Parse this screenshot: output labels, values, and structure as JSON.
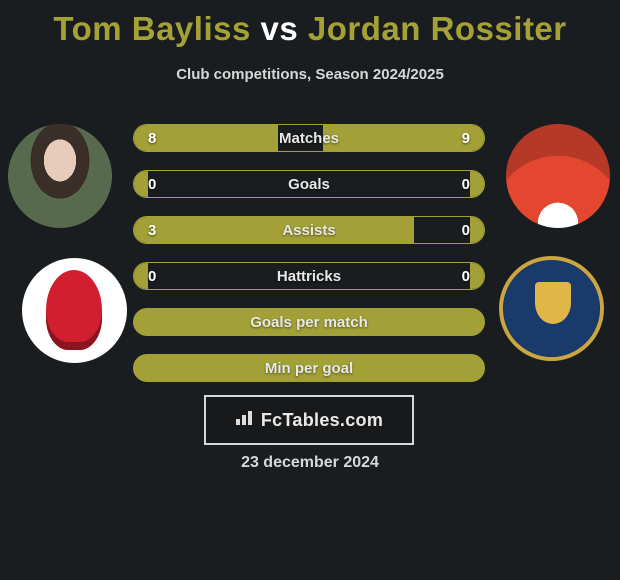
{
  "title": {
    "player1": "Tom Bayliss",
    "vs": "vs",
    "player2": "Jordan Rossiter"
  },
  "subtitle": "Club competitions, Season 2024/2025",
  "colors": {
    "accent": "#a2a037",
    "title_accent": "#a4a237",
    "background": "#1a1d1f",
    "text": "#e8e8e8",
    "border": "#d7d7d7"
  },
  "stats": [
    {
      "label": "Matches",
      "left_val": "8",
      "right_val": "9",
      "left_pct": 41,
      "right_pct": 46
    },
    {
      "label": "Goals",
      "left_val": "0",
      "right_val": "0",
      "left_pct": 4,
      "right_pct": 4
    },
    {
      "label": "Assists",
      "left_val": "3",
      "right_val": "0",
      "left_pct": 80,
      "right_pct": 4
    },
    {
      "label": "Hattricks",
      "left_val": "0",
      "right_val": "0",
      "left_pct": 4,
      "right_pct": 4
    },
    {
      "label": "Goals per match",
      "left_val": "",
      "right_val": "",
      "left_pct": 100,
      "right_pct": 0,
      "full": true
    },
    {
      "label": "Min per goal",
      "left_val": "",
      "right_val": "",
      "left_pct": 100,
      "right_pct": 0,
      "full": true
    }
  ],
  "branding": {
    "icon_glyph": "📊",
    "text": "FcTables.com"
  },
  "date": "23 december 2024"
}
